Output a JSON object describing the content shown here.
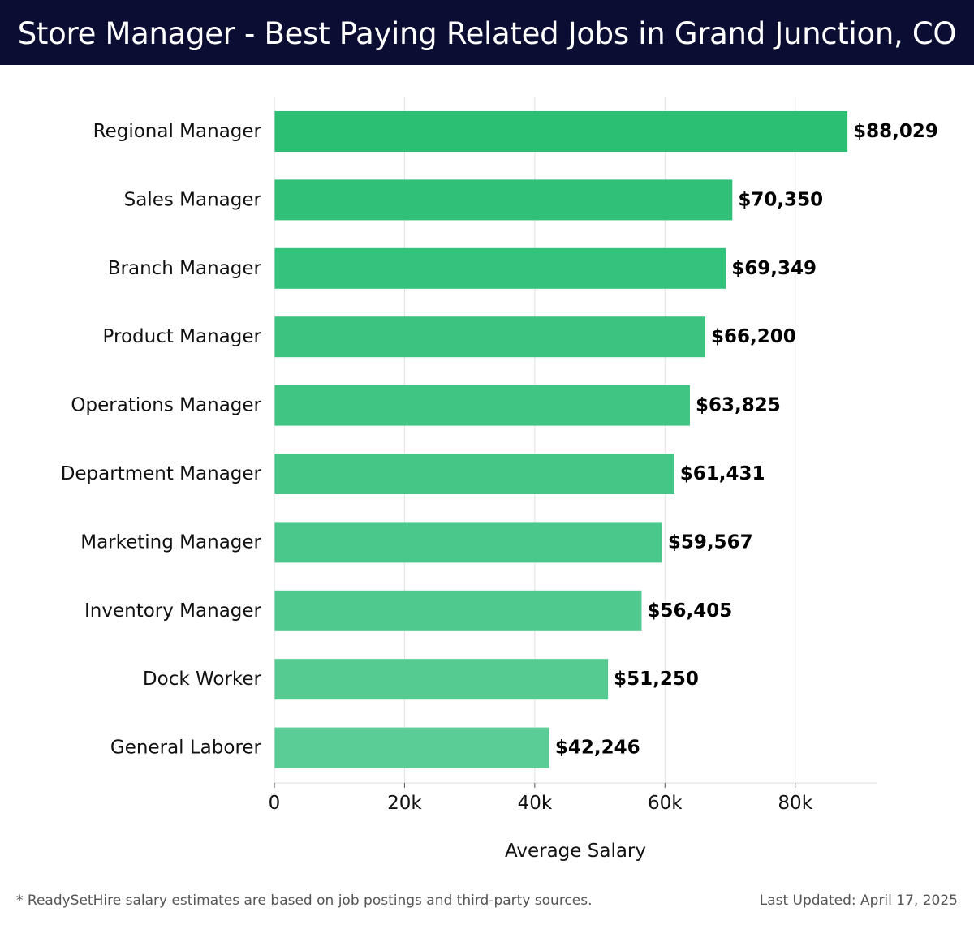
{
  "header": {
    "title": "Store Manager - Best Paying Related Jobs in Grand Junction, CO"
  },
  "chart_data": {
    "type": "bar",
    "orientation": "horizontal",
    "categories": [
      "Regional Manager",
      "Sales Manager",
      "Branch Manager",
      "Product Manager",
      "Operations Manager",
      "Department Manager",
      "Marketing Manager",
      "Inventory Manager",
      "Dock Worker",
      "General Laborer"
    ],
    "values": [
      88029,
      70350,
      69349,
      66200,
      63825,
      61431,
      59567,
      56405,
      51250,
      42246
    ],
    "value_labels": [
      "$88,029",
      "$70,350",
      "$69,349",
      "$66,200",
      "$63,825",
      "$61,431",
      "$59,567",
      "$56,405",
      "$51,250",
      "$42,246"
    ],
    "xlabel": "Average Salary",
    "xlim": [
      0,
      92500
    ],
    "xticks": [
      0,
      20000,
      40000,
      60000,
      80000
    ],
    "xtick_labels": [
      "0",
      "20k",
      "40k",
      "60k",
      "80k"
    ],
    "grid": true,
    "colors": {
      "bar_top": "#2bbf74",
      "bar_bottom": "#5acc96"
    }
  },
  "footer": {
    "note": "* ReadySetHire salary estimates are based on job postings and third-party sources.",
    "updated": "Last Updated: April 17, 2025"
  }
}
